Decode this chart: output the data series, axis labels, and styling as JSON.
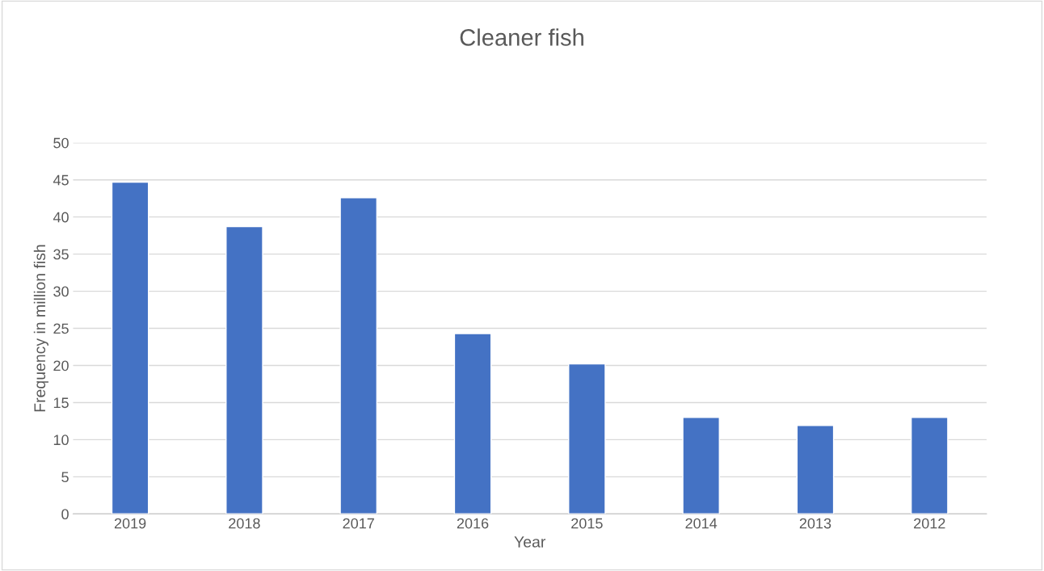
{
  "chart_data": {
    "type": "bar",
    "title": "Cleaner fish",
    "xlabel": "Year",
    "ylabel": "Frequency in million fish",
    "categories": [
      "2019",
      "2018",
      "2017",
      "2016",
      "2015",
      "2014",
      "2013",
      "2012"
    ],
    "values": [
      44.7,
      38.7,
      42.6,
      24.3,
      20.2,
      13.0,
      11.9,
      13.0
    ],
    "color": "#4472c4",
    "ylim": [
      0,
      50
    ],
    "yticks": [
      0,
      5,
      10,
      15,
      20,
      25,
      30,
      35,
      40,
      45,
      50
    ],
    "grid": "y"
  }
}
